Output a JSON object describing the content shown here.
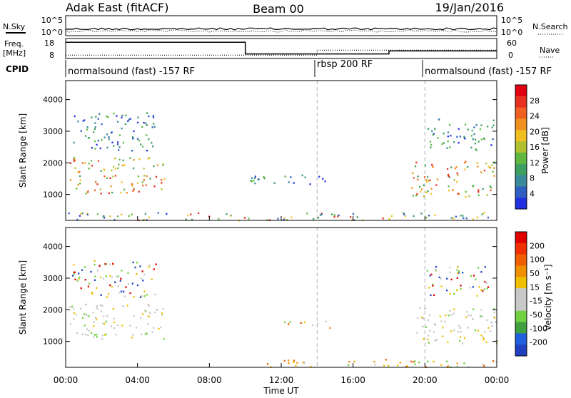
{
  "header": {
    "title": "Adak East (fitACF)",
    "beam": "Beam 00",
    "date": "19/Jan/2016"
  },
  "top_panel": {
    "nsky_label": "N.Sky",
    "nsearch_label": "N.Search",
    "noise_ticks": [
      "10^5",
      "10^0"
    ],
    "freq_label_1": "Freq.",
    "freq_label_2": "[MHz]",
    "freq_ticks": [
      "18",
      "8"
    ],
    "nave_label": "Nave",
    "nave_ticks": [
      "60",
      "0"
    ],
    "cpid_label": "CPID",
    "cpid_segments": [
      {
        "label": "normalsound (fast) -157 RF",
        "start": 0,
        "end": 14
      },
      {
        "label": "rbsp 200 RF",
        "start": 14,
        "end": 20
      },
      {
        "label": "normalsound (fast) -157 RF",
        "start": 20,
        "end": 24
      }
    ],
    "freq_series": [
      [
        0,
        16.1
      ],
      [
        10,
        16.1
      ],
      [
        10,
        10.3
      ],
      [
        18,
        10.3
      ],
      [
        18,
        11.8
      ],
      [
        24,
        11.8
      ]
    ],
    "nave_series": [
      [
        0,
        10
      ],
      [
        14,
        10
      ],
      [
        14,
        25
      ],
      [
        24,
        25
      ]
    ]
  },
  "chart_data": [
    {
      "type": "heatmap",
      "name": "power",
      "ylabel": "Slant Range [km]",
      "ylim": [
        180,
        4600
      ],
      "yticks": [
        1000,
        2000,
        3000,
        4000
      ],
      "xlim": [
        0,
        24
      ],
      "colorbar": {
        "label": "Power [dB]",
        "ticks": [
          "4",
          "8",
          "12",
          "16",
          "20",
          "24",
          "28"
        ],
        "colors": [
          "#2030e0",
          "#2f5fc0",
          "#3a8a9a",
          "#3ca060",
          "#60b840",
          "#b0c030",
          "#f0c020",
          "#f09020",
          "#f06020",
          "#e83020",
          "#e00010"
        ]
      },
      "regions": [
        {
          "t0": 0.2,
          "t1": 5.5,
          "r0": 1050,
          "r1": 2200,
          "level": "high"
        },
        {
          "t0": 0.3,
          "t1": 5.0,
          "r0": 2400,
          "r1": 3600,
          "level": "low"
        },
        {
          "t0": 10.2,
          "t1": 14.8,
          "r0": 1350,
          "r1": 1680,
          "level": "low"
        },
        {
          "t0": 0.1,
          "t1": 24,
          "r0": 200,
          "r1": 450,
          "level": "mixed"
        },
        {
          "t0": 19.2,
          "t1": 24,
          "r0": 950,
          "r1": 2100,
          "level": "high"
        },
        {
          "t0": 20.0,
          "t1": 23.8,
          "r0": 2400,
          "r1": 3400,
          "level": "low"
        }
      ]
    },
    {
      "type": "heatmap",
      "name": "velocity",
      "ylabel": "Slant Range [km]",
      "xlabel": "Time UT",
      "ylim": [
        180,
        4600
      ],
      "yticks": [
        1000,
        2000,
        3000,
        4000
      ],
      "xlim": [
        0,
        24
      ],
      "xticks": [
        "00:00",
        "04:00",
        "08:00",
        "12:00",
        "16:00",
        "20:00",
        "00:00"
      ],
      "colorbar": {
        "label": "Velocity [m s⁻¹]",
        "ticks": [
          "200",
          "100",
          "50",
          "15",
          "-15",
          "-50",
          "-100",
          "-200"
        ],
        "colors": [
          "#2040c0",
          "#2060e0",
          "#40a040",
          "#70d040",
          "#c8c8c8",
          "#c8c8c8",
          "#f0c000",
          "#f09000",
          "#f06000",
          "#f03000",
          "#e00000"
        ]
      },
      "regions": [
        {
          "t0": 0.2,
          "t1": 5.5,
          "r0": 1100,
          "r1": 2200,
          "level": "gray"
        },
        {
          "t0": 0.3,
          "t1": 5.0,
          "r0": 2400,
          "r1": 3600,
          "level": "mixed"
        },
        {
          "t0": 11.8,
          "t1": 14.8,
          "r0": 1450,
          "r1": 1680,
          "level": "orange"
        },
        {
          "t0": 11.2,
          "t1": 24,
          "r0": 200,
          "r1": 450,
          "level": "orange"
        },
        {
          "t0": 19.5,
          "t1": 24,
          "r0": 950,
          "r1": 2100,
          "level": "gray"
        },
        {
          "t0": 20.0,
          "t1": 23.5,
          "r0": 2400,
          "r1": 3400,
          "level": "mixed"
        }
      ]
    }
  ]
}
